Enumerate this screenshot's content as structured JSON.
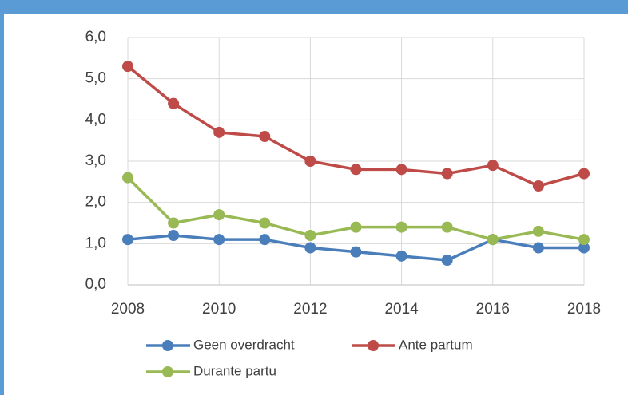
{
  "chart_data": {
    "type": "line",
    "x": [
      2008,
      2009,
      2010,
      2011,
      2012,
      2013,
      2014,
      2015,
      2016,
      2017,
      2018
    ],
    "series": [
      {
        "name": "Geen overdracht",
        "color": "#4a7ebb",
        "values": [
          1.1,
          1.2,
          1.1,
          1.1,
          0.9,
          0.8,
          0.7,
          0.6,
          1.1,
          0.9,
          0.9
        ]
      },
      {
        "name": "Ante partum",
        "color": "#be4b48",
        "values": [
          5.3,
          4.4,
          3.7,
          3.6,
          3.0,
          2.8,
          2.8,
          2.7,
          2.9,
          2.4,
          2.7
        ]
      },
      {
        "name": "Durante partu",
        "color": "#98b954",
        "values": [
          2.6,
          1.5,
          1.7,
          1.5,
          1.2,
          1.4,
          1.4,
          1.4,
          1.1,
          1.3,
          1.1
        ]
      }
    ],
    "xlim": [
      2008,
      2018
    ],
    "xticks": [
      2008,
      2010,
      2012,
      2014,
      2016,
      2018
    ],
    "ylim": [
      0,
      6
    ],
    "yticks": [
      {
        "value": 0,
        "label": "0,0"
      },
      {
        "value": 1,
        "label": "1,0"
      },
      {
        "value": 2,
        "label": "2,0"
      },
      {
        "value": 3,
        "label": "3,0"
      },
      {
        "value": 4,
        "label": "4,0"
      },
      {
        "value": 5,
        "label": "5,0"
      },
      {
        "value": 6,
        "label": "6,0"
      }
    ],
    "grid": true
  }
}
